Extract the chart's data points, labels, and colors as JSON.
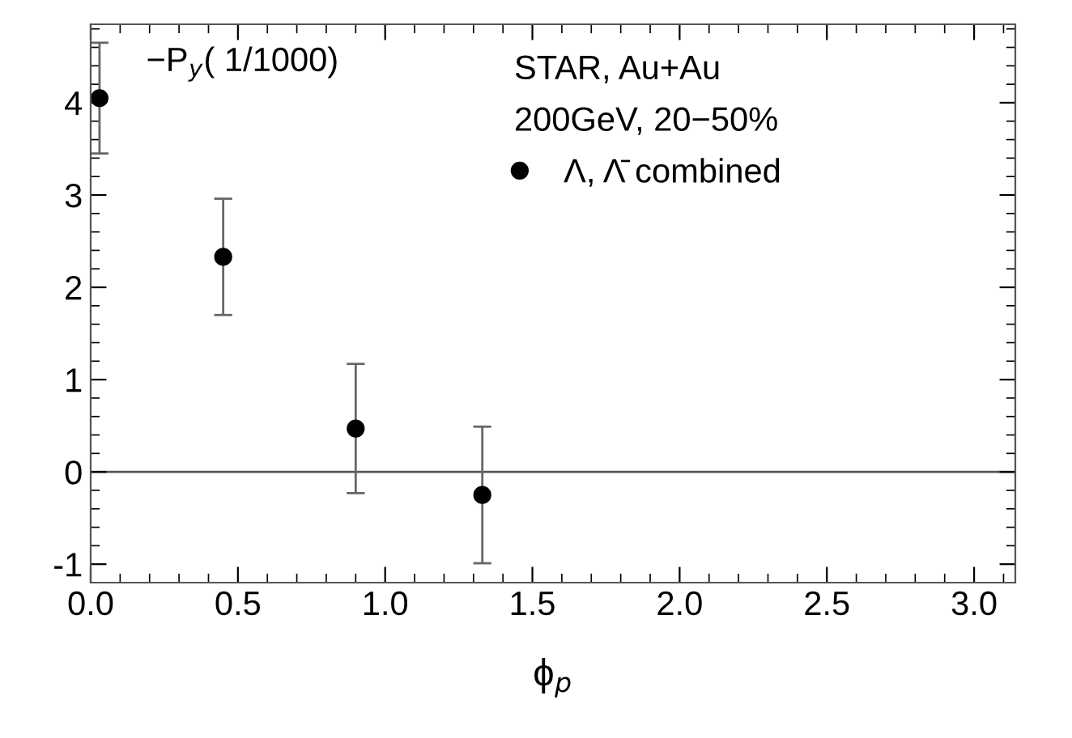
{
  "chart_data": {
    "type": "scatter",
    "xlabel": "ϕ$_{p}$",
    "x": [
      0.03,
      0.45,
      0.9,
      1.33
    ],
    "series": [
      {
        "name": "Λ, Λ̄ combined",
        "color": "#000000",
        "values": [
          4.05,
          2.33,
          0.47,
          -0.25
        ],
        "errors": [
          0.6,
          0.63,
          0.7,
          0.74
        ]
      }
    ],
    "xlim": [
      0,
      3.14
    ],
    "xticks": [
      {
        "value": 0,
        "label": "0.0"
      },
      0.5,
      {
        "value": 1,
        "label": "1.0"
      },
      1.5,
      {
        "value": 2,
        "label": "2.0"
      },
      2.5,
      {
        "value": 3,
        "label": "3.0"
      }
    ],
    "ylim": [
      -1.2,
      4.85
    ],
    "yticks": [
      -1,
      0,
      1,
      2,
      3,
      4
    ],
    "ref_lines": [
      {
        "axis": "y",
        "value": 0,
        "color": "#555555"
      }
    ],
    "annotations": [
      "−P$_{y}$( 1/1000)",
      "STAR, Au+Au",
      "200GeV, 20−50%"
    ],
    "marker": "circle",
    "legend": "top right",
    "grid": false
  }
}
